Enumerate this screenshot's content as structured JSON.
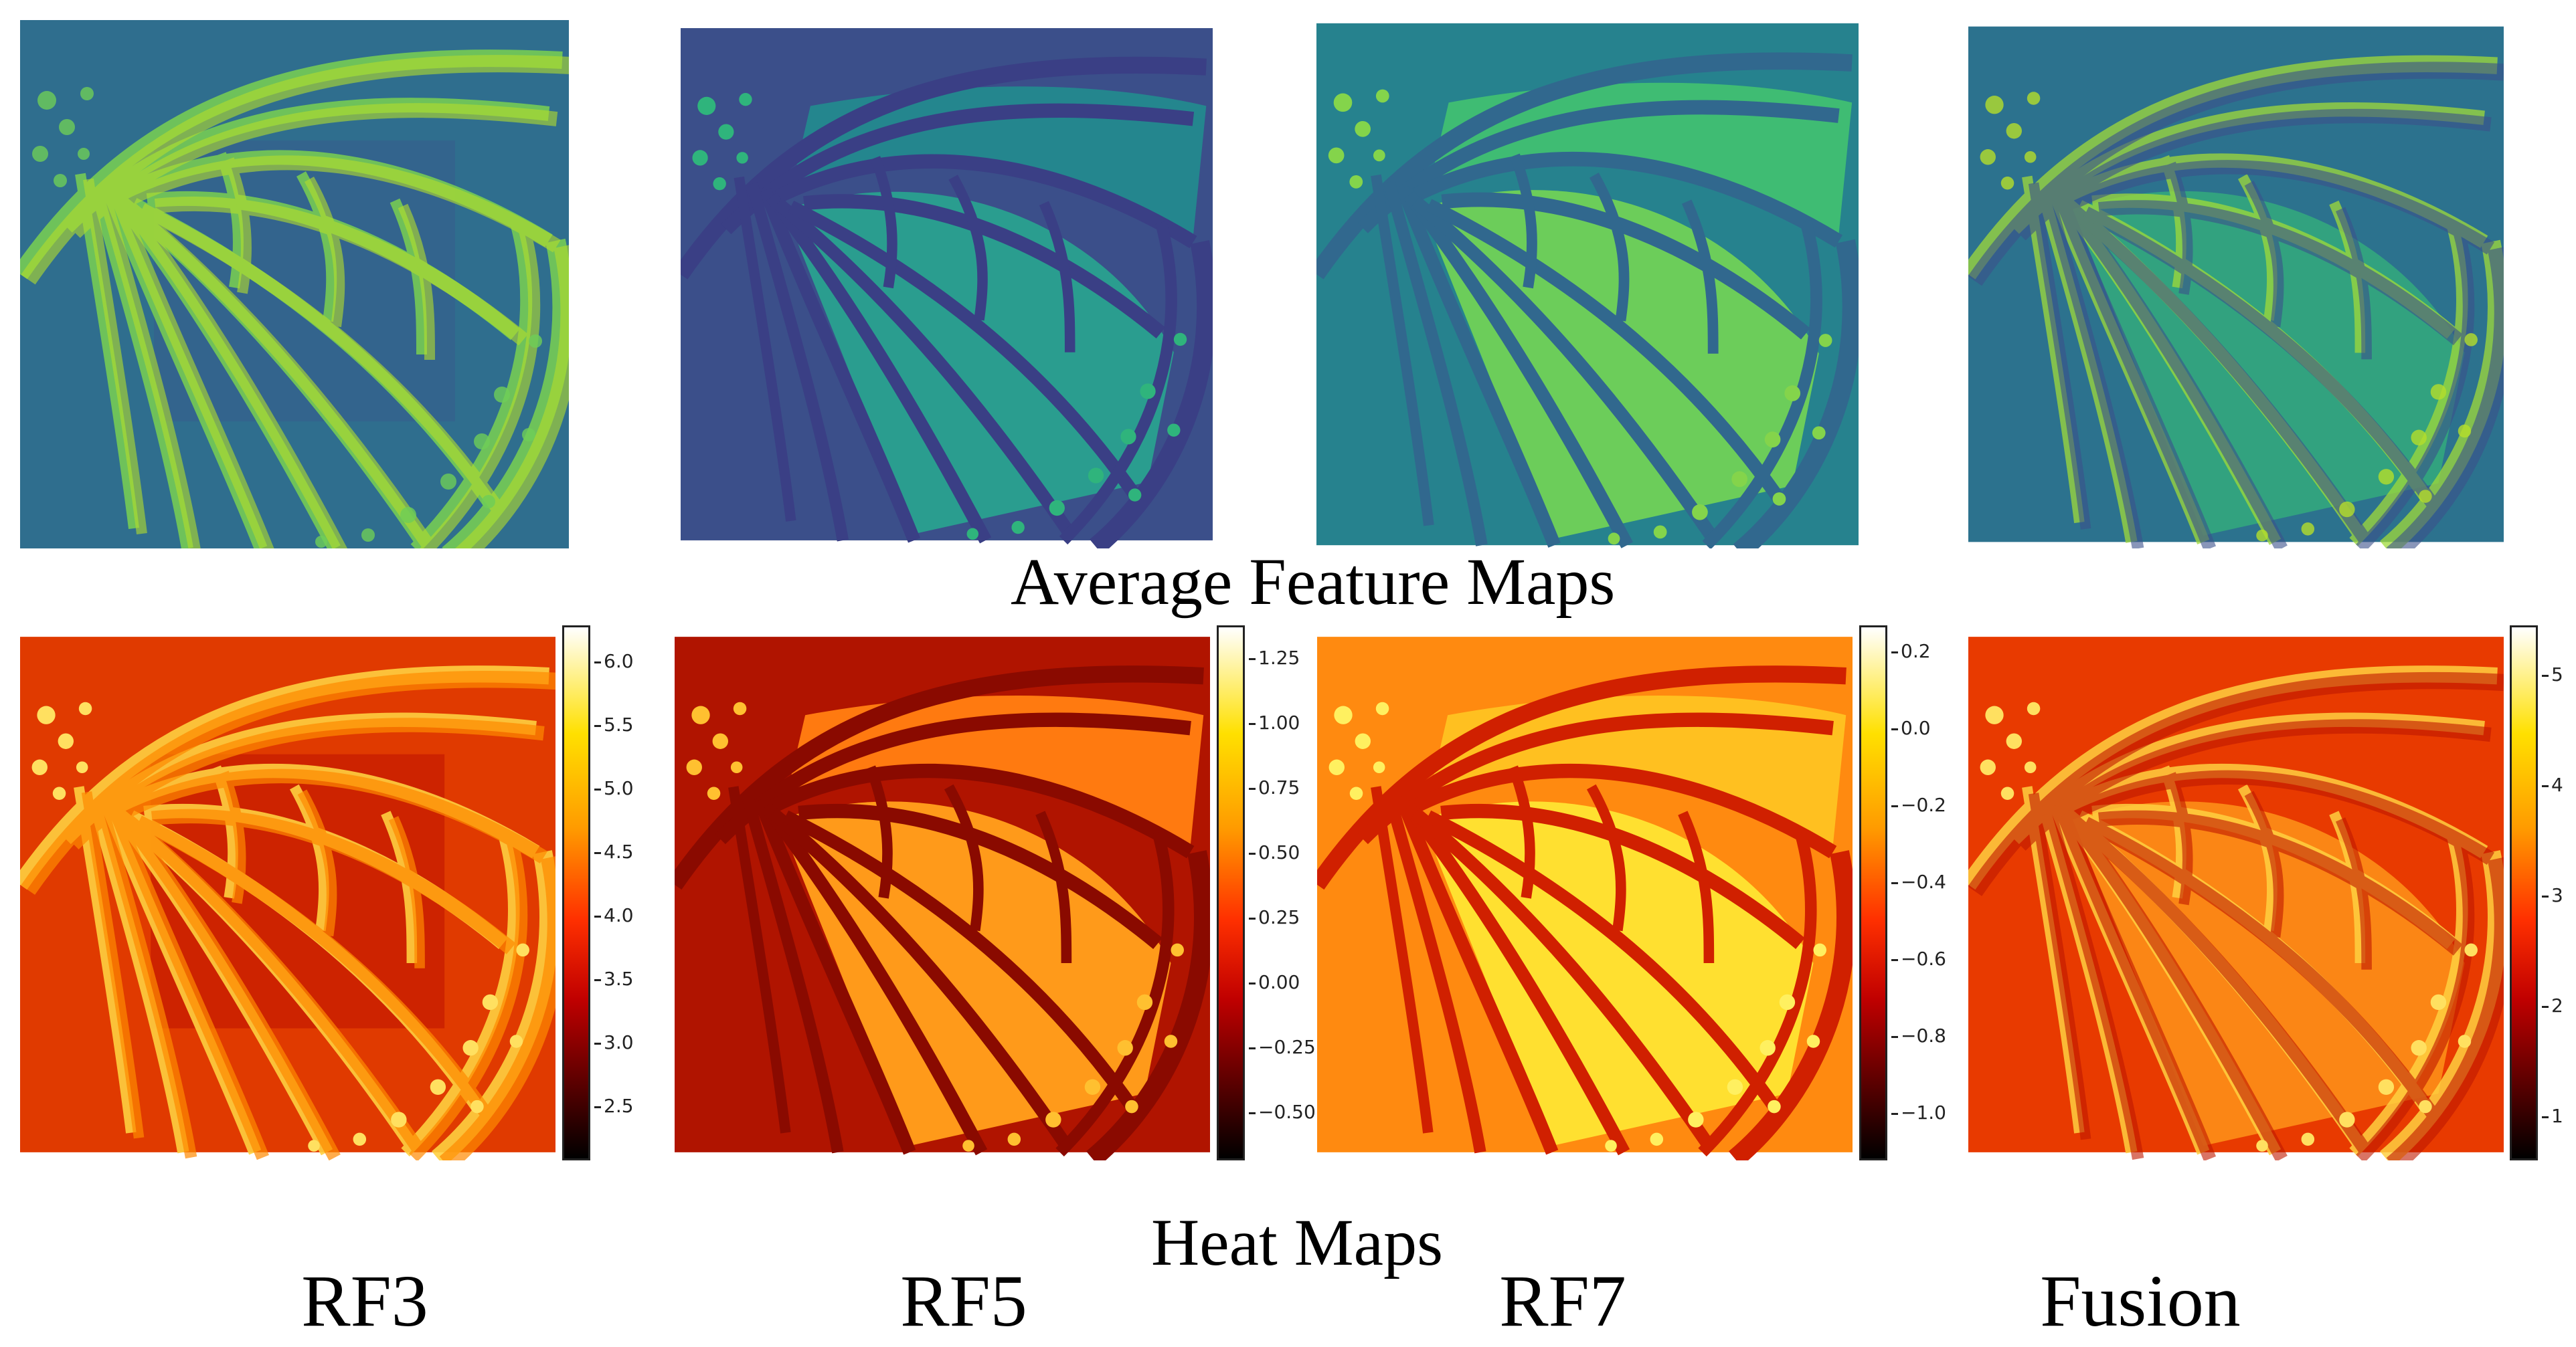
{
  "sections": {
    "feature_maps_label": "Average Feature Maps",
    "heat_maps_label": "Heat Maps"
  },
  "columns": [
    {
      "label": "RF3"
    },
    {
      "label": "RF5"
    },
    {
      "label": "RF7"
    },
    {
      "label": "Fusion"
    }
  ],
  "colorbars": [
    {
      "ticks": [
        "6.0",
        "5.5",
        "5.0",
        "4.5",
        "4.0",
        "3.5",
        "3.0",
        "2.5"
      ]
    },
    {
      "ticks": [
        "1.25",
        "1.00",
        "0.75",
        "0.50",
        "0.25",
        "0.00",
        "−0.25",
        "−0.50"
      ]
    },
    {
      "ticks": [
        "0.2",
        "0.0",
        "−0.2",
        "−0.4",
        "−0.6",
        "−0.8",
        "−1.0"
      ]
    },
    {
      "ticks": [
        "5",
        "4",
        "3",
        "2",
        "1"
      ]
    }
  ],
  "colormaps": {
    "viridis": [
      "#440154",
      "#3b528b",
      "#21908d",
      "#5dc963",
      "#fde725"
    ],
    "hot": [
      "#000000",
      "#c00000",
      "#ff3000",
      "#ff9a00",
      "#ffe000",
      "#ffffff"
    ]
  }
}
